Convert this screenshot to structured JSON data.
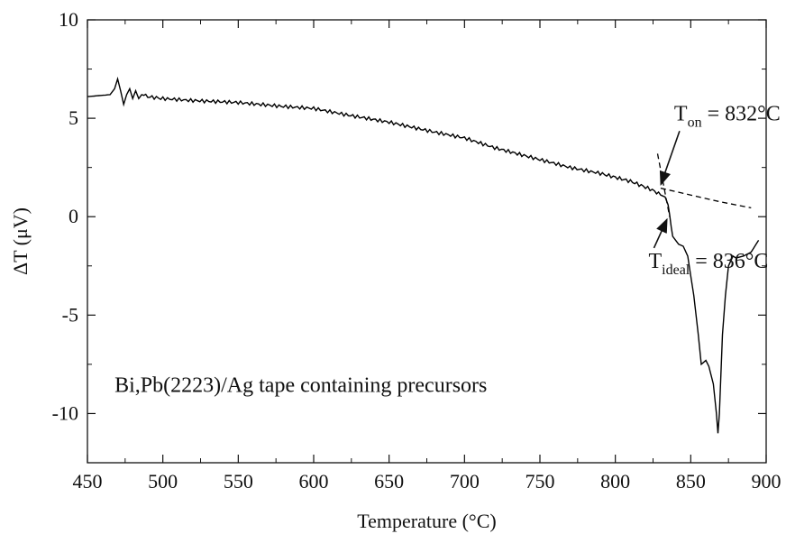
{
  "chart_data": {
    "type": "line",
    "xlabel": "Temperature (°C)",
    "ylabel": "ΔT (μV)",
    "xlim": [
      450,
      900
    ],
    "ylim": [
      -12.5,
      10
    ],
    "xticks": [
      450,
      500,
      550,
      600,
      650,
      700,
      750,
      800,
      850,
      900
    ],
    "yticks": [
      -10,
      -5,
      0,
      5,
      10
    ],
    "ytick_labels": [
      "-10",
      "-5",
      "0",
      "5",
      "10"
    ],
    "grid": false,
    "series": [
      {
        "style": "solid",
        "color": "#000000",
        "x": [
          450,
          465,
          468,
          470,
          472,
          474,
          476,
          478,
          480,
          482,
          484,
          486,
          490,
          500,
          520,
          550,
          580,
          600,
          620,
          650,
          680,
          700,
          720,
          750,
          770,
          790,
          800,
          810,
          820,
          826,
          830,
          833,
          835,
          836,
          837,
          838,
          840,
          842,
          845,
          848,
          850,
          852,
          855,
          857,
          860,
          862,
          865,
          867,
          868,
          869,
          870,
          871,
          873,
          875,
          878,
          880,
          885,
          890,
          895
        ],
        "y": [
          6.1,
          6.2,
          6.5,
          7.0,
          6.4,
          5.7,
          6.2,
          6.5,
          6.0,
          6.4,
          6.0,
          6.2,
          6.1,
          6.0,
          5.9,
          5.8,
          5.6,
          5.5,
          5.2,
          4.8,
          4.3,
          4.0,
          3.5,
          2.9,
          2.5,
          2.2,
          2.0,
          1.8,
          1.5,
          1.3,
          1.1,
          1.0,
          0.6,
          0.1,
          -0.5,
          -1.0,
          -1.2,
          -1.4,
          -1.5,
          -2.0,
          -3.0,
          -4.0,
          -6.0,
          -7.5,
          -7.3,
          -7.6,
          -8.5,
          -10.0,
          -11.0,
          -10.0,
          -8.0,
          -6.0,
          -4.0,
          -2.5,
          -2.0,
          -2.1,
          -2.0,
          -1.8,
          -1.2
        ]
      },
      {
        "style": "dashed",
        "color": "#000000",
        "x": [
          830,
          850,
          870,
          890
        ],
        "y": [
          1.45,
          1.1,
          0.75,
          0.45
        ]
      },
      {
        "style": "dashed",
        "color": "#000000",
        "x": [
          828,
          832,
          836
        ],
        "y": [
          3.2,
          1.6,
          0.0
        ]
      }
    ],
    "annotations": [
      {
        "main": "T",
        "sub": "on",
        "rest": " = 832°C",
        "x": 832,
        "y": 1.5,
        "text_at": [
          839,
          4.9
        ]
      },
      {
        "main": "T",
        "sub": "ideal",
        "rest": " = 836°C",
        "x": 836,
        "y": 0.0,
        "text_at": [
          822,
          -2.6
        ]
      }
    ],
    "caption": "Bi,Pb(2223)/Ag tape containing precursors"
  }
}
